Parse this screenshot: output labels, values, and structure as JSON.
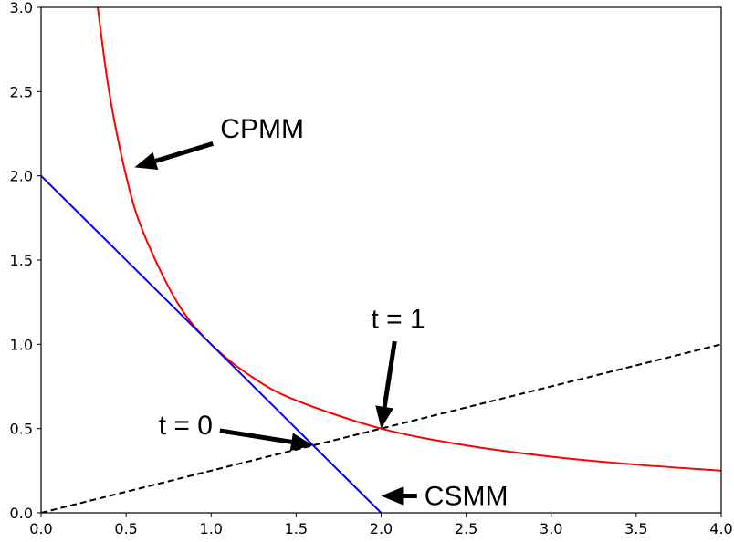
{
  "chart_data": {
    "type": "line",
    "title": "",
    "xlabel": "",
    "ylabel": "",
    "xlim": [
      0,
      4
    ],
    "ylim": [
      0,
      3
    ],
    "xticks": [
      "0.0",
      "0.5",
      "1.0",
      "1.5",
      "2.0",
      "2.5",
      "3.0",
      "3.5",
      "4.0"
    ],
    "yticks": [
      "0.0",
      "0.5",
      "1.0",
      "1.5",
      "2.0",
      "2.5",
      "3.0"
    ],
    "grid": false,
    "series": [
      {
        "color": "#ff0000",
        "style": "solid",
        "x": [
          0.333,
          0.4,
          0.5,
          0.6,
          0.8,
          1.0,
          1.25,
          1.5,
          2.0,
          2.5,
          3.0,
          3.5,
          4.0
        ],
        "y": [
          3.0,
          2.5,
          2.0,
          1.667,
          1.25,
          1.0,
          0.8,
          0.667,
          0.5,
          0.4,
          0.333,
          0.286,
          0.25
        ]
      },
      {
        "color": "#0000ff",
        "style": "solid",
        "x": [
          0.0,
          2.0
        ],
        "y": [
          2.0,
          0.0
        ]
      },
      {
        "color": "#000000",
        "style": "dashed",
        "x": [
          0.0,
          4.0
        ],
        "y": [
          0.0,
          1.0
        ]
      }
    ],
    "annotations": [
      {
        "text": "CPMM",
        "point": [
          0.55,
          2.05
        ],
        "text_pos": [
          1.3,
          2.28
        ]
      },
      {
        "text": "t = 1",
        "point": [
          2.0,
          0.5
        ],
        "text_pos": [
          2.1,
          1.15
        ]
      },
      {
        "text": "t = 0",
        "point": [
          1.6,
          0.4
        ],
        "text_pos": [
          0.85,
          0.52
        ]
      },
      {
        "text": "CSMM",
        "point": [
          2.0,
          0.1
        ],
        "text_pos": [
          2.5,
          0.1
        ]
      }
    ]
  }
}
